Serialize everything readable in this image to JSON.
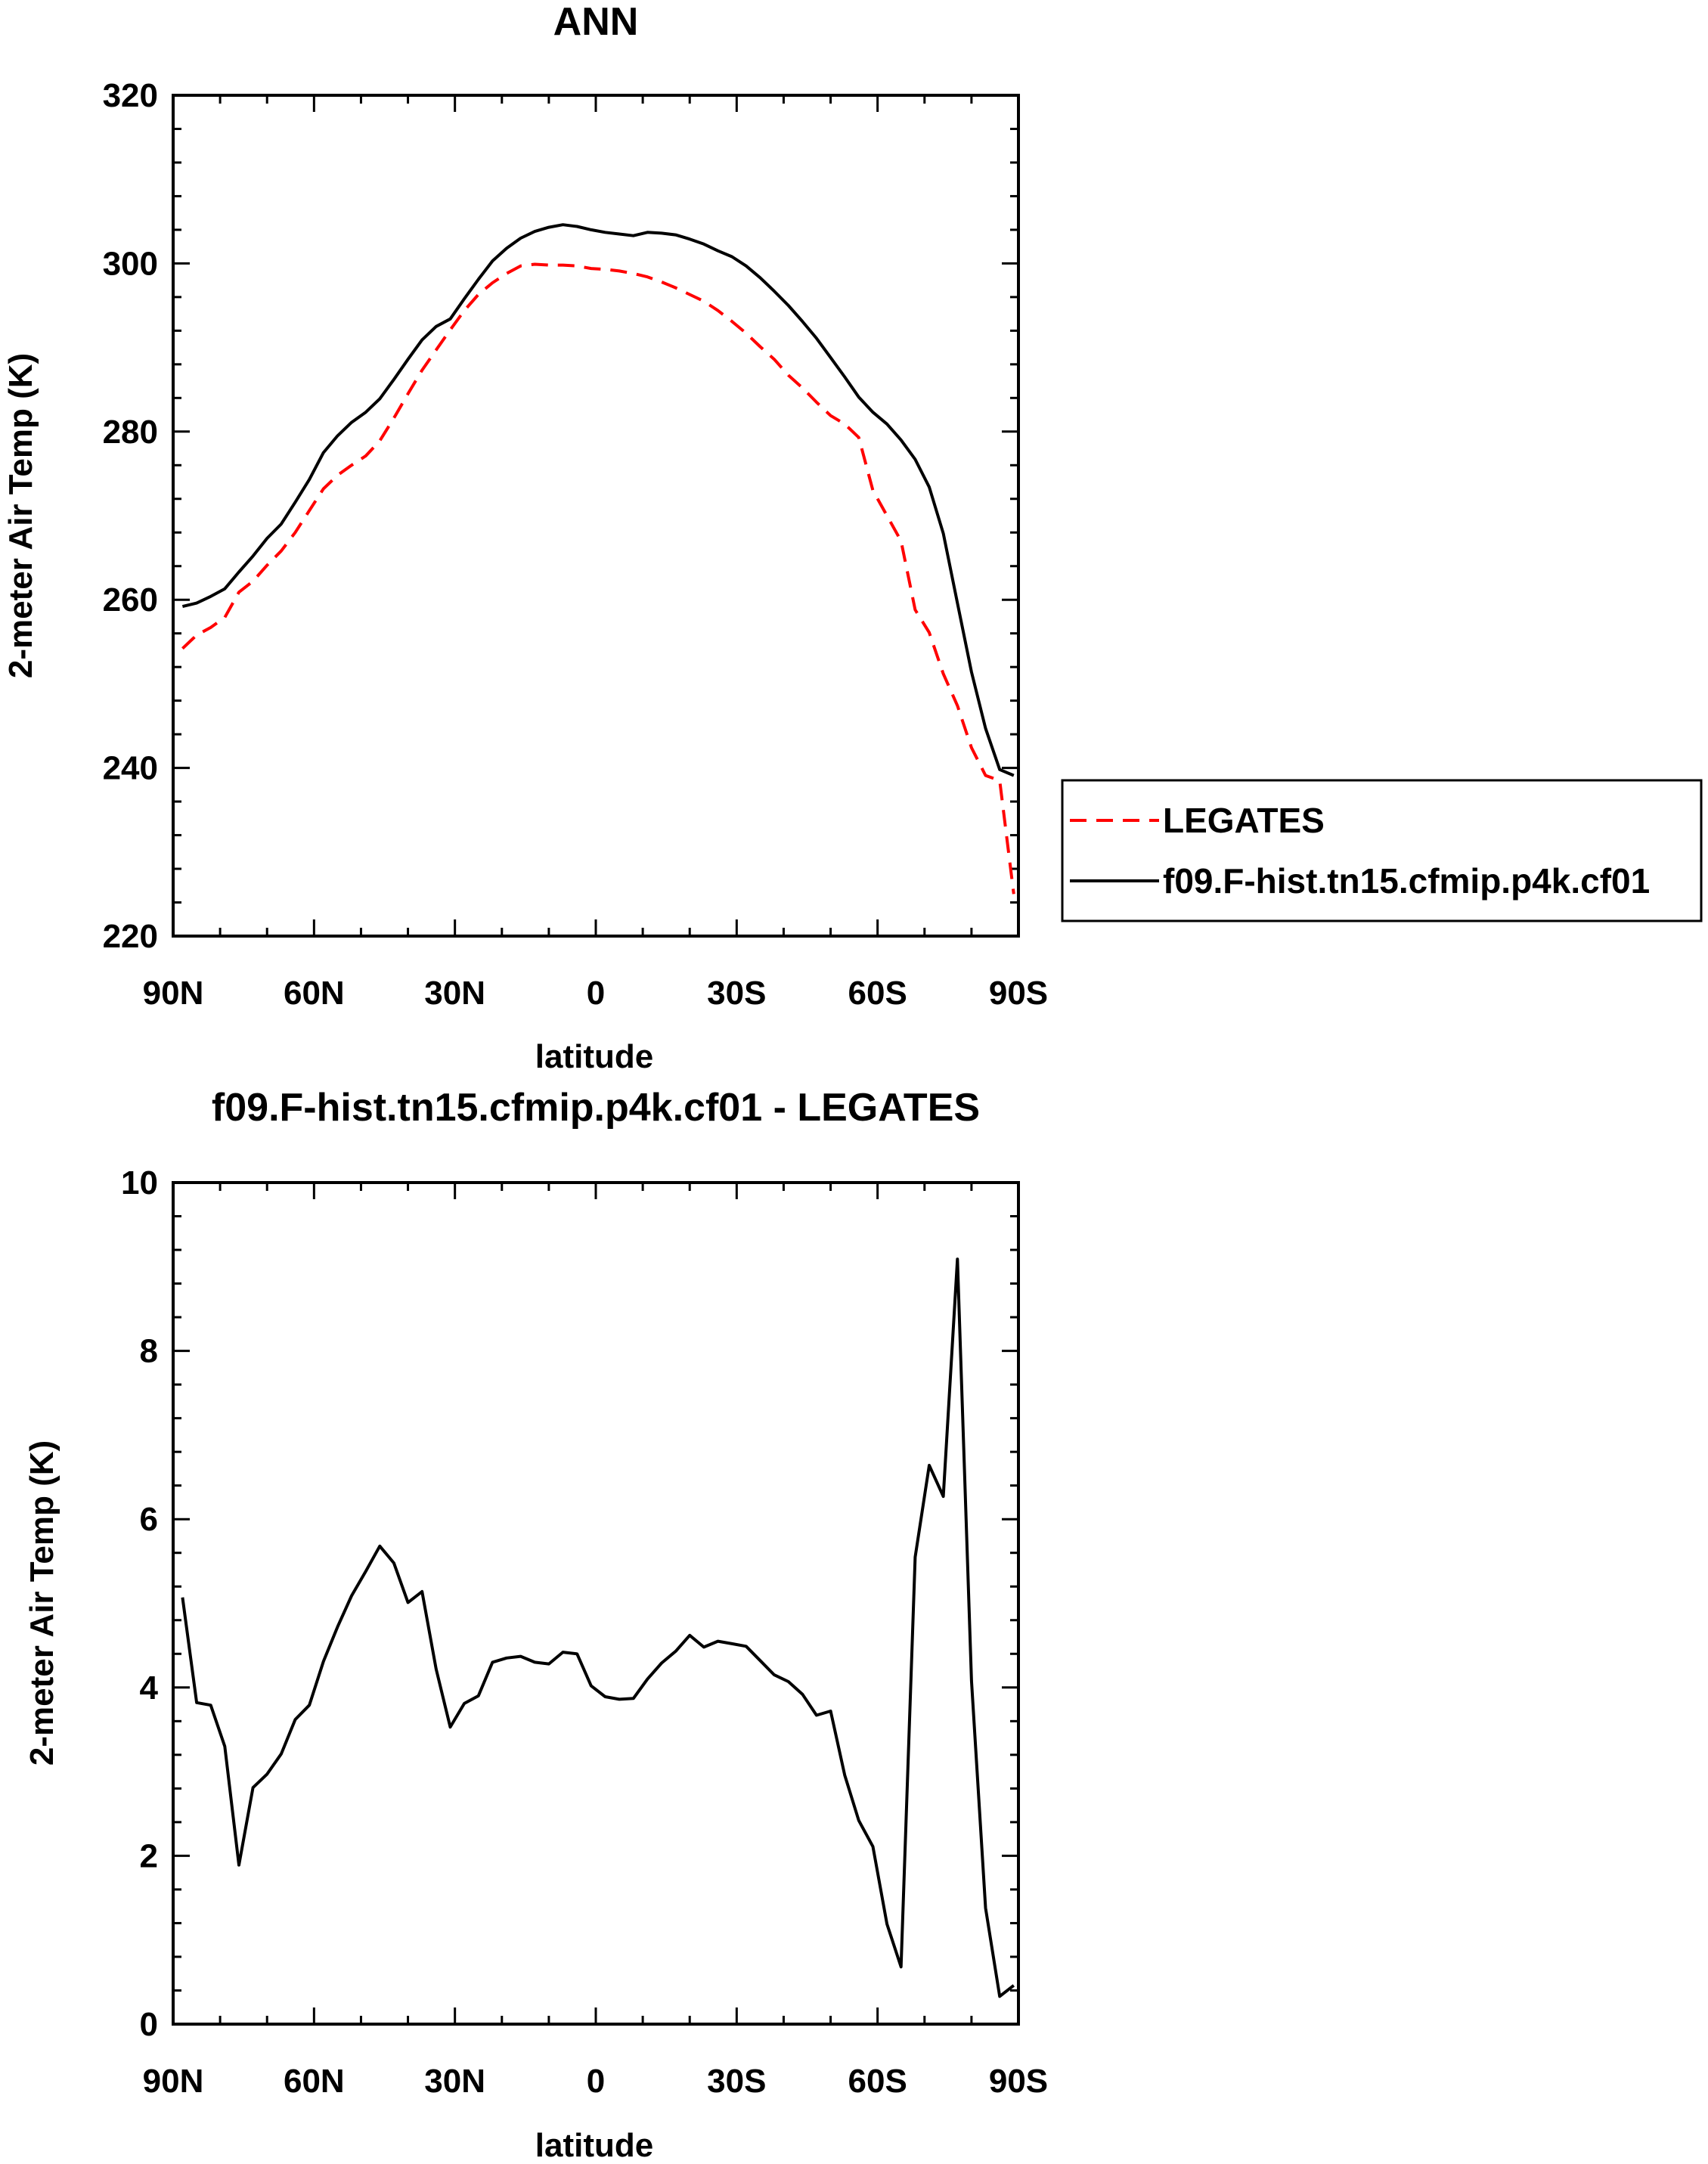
{
  "chart_data": [
    {
      "type": "line",
      "title": "ANN",
      "xlabel": "latitude",
      "ylabel": "2-meter Air Temp (K)",
      "xlim": [
        90,
        -90
      ],
      "ylim": [
        220,
        320
      ],
      "x_ticks": [
        {
          "value": 90,
          "label": "90N"
        },
        {
          "value": 60,
          "label": "60N"
        },
        {
          "value": 30,
          "label": "30N"
        },
        {
          "value": 0,
          "label": "0"
        },
        {
          "value": -30,
          "label": "30S"
        },
        {
          "value": -60,
          "label": "60S"
        },
        {
          "value": -90,
          "label": "90S"
        }
      ],
      "y_ticks": [
        {
          "value": 220,
          "label": "220"
        },
        {
          "value": 240,
          "label": "240"
        },
        {
          "value": 260,
          "label": "260"
        },
        {
          "value": 280,
          "label": "280"
        },
        {
          "value": 300,
          "label": "300"
        },
        {
          "value": 320,
          "label": "320"
        }
      ],
      "legend": {
        "position": "right"
      },
      "series": [
        {
          "name": "LEGATES",
          "color": "#ff0000",
          "dash": "dashed",
          "x": [
            88,
            85,
            82,
            79,
            76,
            73,
            70,
            67,
            64,
            61,
            58,
            55,
            52,
            49,
            46,
            43,
            40,
            37,
            34,
            31,
            28,
            25,
            22,
            19,
            16,
            13,
            10,
            7,
            4,
            1,
            -2,
            -5,
            -8,
            -11,
            -14,
            -17,
            -20,
            -23,
            -26,
            -29,
            -32,
            -35,
            -38,
            -41,
            -44,
            -47,
            -50,
            -53,
            -56,
            -59,
            -62,
            -65,
            -68,
            -71,
            -74,
            -77,
            -80,
            -83,
            -86,
            -89
          ],
          "y": [
            254.2,
            255.8,
            256.7,
            257.9,
            260.9,
            262.2,
            264.1,
            265.8,
            268.0,
            270.6,
            273.2,
            274.8,
            276.0,
            277.1,
            278.9,
            281.6,
            284.5,
            287.3,
            289.7,
            292.1,
            294.4,
            296.3,
            297.7,
            298.8,
            299.7,
            299.9,
            299.8,
            299.8,
            299.7,
            299.4,
            299.3,
            299.1,
            298.8,
            298.4,
            297.8,
            297.1,
            296.3,
            295.5,
            294.4,
            293.1,
            291.7,
            290.1,
            288.6,
            286.7,
            285.2,
            283.5,
            281.9,
            280.9,
            279.3,
            273.0,
            270.0,
            267.0,
            258.8,
            256.1,
            251.2,
            247.4,
            242.4,
            239.1,
            238.5,
            225.0
          ]
        },
        {
          "name": "f09.F-hist.tn15.cfmip.p4k.cf01",
          "color": "#000000",
          "dash": "solid",
          "x": [
            88,
            85,
            82,
            79,
            76,
            73,
            70,
            67,
            64,
            61,
            58,
            55,
            52,
            49,
            46,
            43,
            40,
            37,
            34,
            31,
            28,
            25,
            22,
            19,
            16,
            13,
            10,
            7,
            4,
            1,
            -2,
            -5,
            -8,
            -11,
            -14,
            -17,
            -20,
            -23,
            -26,
            -29,
            -32,
            -35,
            -38,
            -41,
            -44,
            -47,
            -50,
            -53,
            -56,
            -59,
            -62,
            -65,
            -68,
            -71,
            -74,
            -77,
            -80,
            -83,
            -86,
            -89
          ],
          "y": [
            259.2,
            259.6,
            260.4,
            261.3,
            263.3,
            265.2,
            267.3,
            269.0,
            271.6,
            274.3,
            277.5,
            279.5,
            281.1,
            282.3,
            283.9,
            286.2,
            288.6,
            290.9,
            292.5,
            293.4,
            295.8,
            298.1,
            300.3,
            301.8,
            303.0,
            303.8,
            304.3,
            304.6,
            304.4,
            304.0,
            303.7,
            303.5,
            303.3,
            303.7,
            303.6,
            303.4,
            302.9,
            302.3,
            301.5,
            300.8,
            299.7,
            298.3,
            296.7,
            295.0,
            293.1,
            291.1,
            288.8,
            286.5,
            284.1,
            282.3,
            280.9,
            279.0,
            276.7,
            273.4,
            267.9,
            259.6,
            251.4,
            244.7,
            239.8,
            239.1
          ]
        }
      ]
    },
    {
      "type": "line",
      "title": "f09.F-hist.tn15.cfmip.p4k.cf01 - LEGATES",
      "xlabel": "latitude",
      "ylabel": "2-meter Air Temp (K)",
      "xlim": [
        90,
        -90
      ],
      "ylim": [
        0,
        10
      ],
      "x_ticks": [
        {
          "value": 90,
          "label": "90N"
        },
        {
          "value": 60,
          "label": "60N"
        },
        {
          "value": 30,
          "label": "30N"
        },
        {
          "value": 0,
          "label": "0"
        },
        {
          "value": -30,
          "label": "30S"
        },
        {
          "value": -60,
          "label": "60S"
        },
        {
          "value": -90,
          "label": "90S"
        }
      ],
      "y_ticks": [
        {
          "value": 0,
          "label": "0"
        },
        {
          "value": 2,
          "label": "2"
        },
        {
          "value": 4,
          "label": "4"
        },
        {
          "value": 6,
          "label": "6"
        },
        {
          "value": 8,
          "label": "8"
        },
        {
          "value": 10,
          "label": "10"
        }
      ],
      "series": [
        {
          "color": "#000000",
          "dash": "solid",
          "x": [
            88,
            85,
            82,
            79,
            76,
            73,
            70,
            67,
            64,
            61,
            58,
            55,
            52,
            49,
            46,
            43,
            40,
            37,
            34,
            31,
            28,
            25,
            22,
            19,
            16,
            13,
            10,
            7,
            4,
            1,
            -2,
            -5,
            -8,
            -11,
            -14,
            -17,
            -20,
            -23,
            -26,
            -29,
            -32,
            -35,
            -38,
            -41,
            -44,
            -47,
            -50,
            -53,
            -56,
            -59,
            -62,
            -65,
            -68,
            -71,
            -74,
            -77,
            -80,
            -83,
            -86,
            -89
          ],
          "y": [
            5.07,
            3.82,
            3.79,
            3.3,
            1.89,
            2.81,
            2.97,
            3.21,
            3.62,
            3.79,
            4.31,
            4.72,
            5.09,
            5.38,
            5.68,
            5.48,
            5.01,
            5.14,
            4.22,
            3.53,
            3.81,
            3.9,
            4.3,
            4.35,
            4.37,
            4.3,
            4.28,
            4.42,
            4.4,
            4.02,
            3.89,
            3.86,
            3.87,
            4.1,
            4.29,
            4.43,
            4.62,
            4.48,
            4.55,
            4.52,
            4.49,
            4.32,
            4.15,
            4.07,
            3.92,
            3.67,
            3.72,
            2.96,
            2.42,
            2.11,
            1.19,
            0.68,
            5.55,
            6.64,
            6.27,
            9.09,
            4.08,
            1.38,
            0.33,
            0.46
          ]
        }
      ]
    }
  ]
}
